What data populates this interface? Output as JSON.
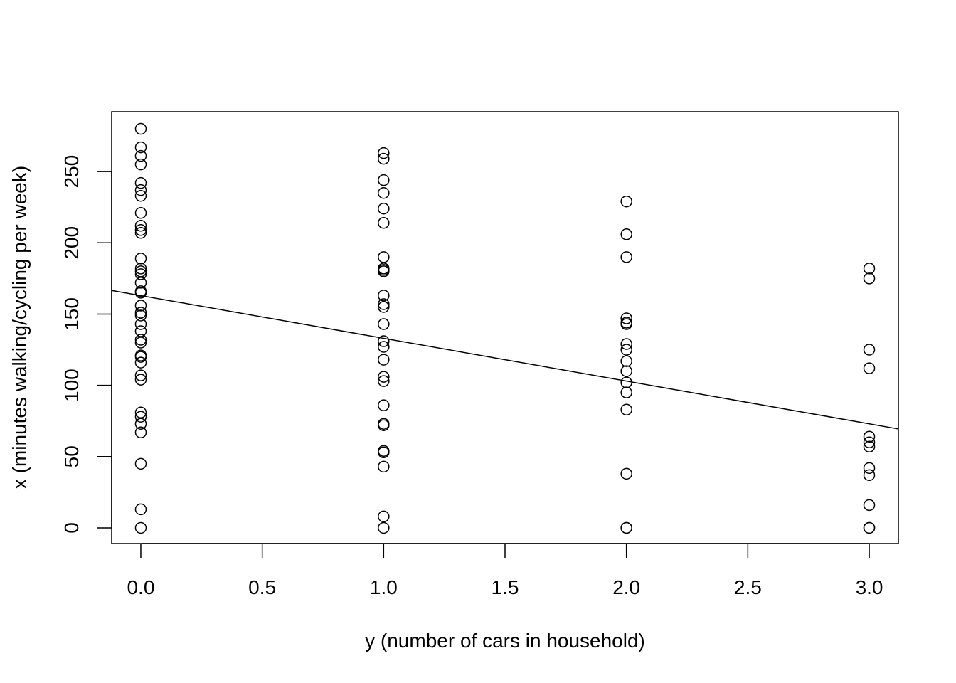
{
  "chart_data": {
    "type": "scatter",
    "title": "",
    "xlabel": "y (number of cars in household)",
    "ylabel": "x (minutes walking/cycling per week)",
    "xlim": [
      -0.12,
      3.12
    ],
    "ylim": [
      -11,
      292
    ],
    "x_ticks": [
      "0.0",
      "0.5",
      "1.0",
      "1.5",
      "2.0",
      "2.5",
      "3.0"
    ],
    "y_ticks": [
      "0",
      "50",
      "100",
      "150",
      "200",
      "250"
    ],
    "grid": false,
    "legend": "none",
    "series": [
      {
        "points": [
          [
            0,
            280
          ],
          [
            0,
            267
          ],
          [
            0,
            261
          ],
          [
            0,
            255
          ],
          [
            0,
            242
          ],
          [
            0,
            237
          ],
          [
            0,
            233
          ],
          [
            0,
            221
          ],
          [
            0,
            212
          ],
          [
            0,
            209
          ],
          [
            0,
            207
          ],
          [
            0,
            189
          ],
          [
            0,
            182
          ],
          [
            0,
            180
          ],
          [
            0,
            178
          ],
          [
            0,
            172
          ],
          [
            0,
            166
          ],
          [
            0,
            165
          ],
          [
            0,
            156
          ],
          [
            0,
            151
          ],
          [
            0,
            149
          ],
          [
            0,
            143
          ],
          [
            0,
            138
          ],
          [
            0,
            132
          ],
          [
            0,
            130
          ],
          [
            0,
            121
          ],
          [
            0,
            120
          ],
          [
            0,
            116
          ],
          [
            0,
            107
          ],
          [
            0,
            104
          ],
          [
            0,
            81
          ],
          [
            0,
            78
          ],
          [
            0,
            73
          ],
          [
            0,
            67
          ],
          [
            0,
            45
          ],
          [
            0,
            13
          ],
          [
            0,
            0
          ],
          [
            1,
            263
          ],
          [
            1,
            259
          ],
          [
            1,
            244
          ],
          [
            1,
            235
          ],
          [
            1,
            224
          ],
          [
            1,
            214
          ],
          [
            1,
            190
          ],
          [
            1,
            182
          ],
          [
            1,
            181
          ],
          [
            1,
            180
          ],
          [
            1,
            163
          ],
          [
            1,
            157
          ],
          [
            1,
            155
          ],
          [
            1,
            143
          ],
          [
            1,
            131
          ],
          [
            1,
            127
          ],
          [
            1,
            118
          ],
          [
            1,
            106
          ],
          [
            1,
            103
          ],
          [
            1,
            86
          ],
          [
            1,
            73
          ],
          [
            1,
            72
          ],
          [
            1,
            54
          ],
          [
            1,
            53
          ],
          [
            1,
            43
          ],
          [
            1,
            8
          ],
          [
            1,
            0
          ],
          [
            2,
            229
          ],
          [
            2,
            206
          ],
          [
            2,
            190
          ],
          [
            2,
            147
          ],
          [
            2,
            144
          ],
          [
            2,
            143
          ],
          [
            2,
            129
          ],
          [
            2,
            125
          ],
          [
            2,
            117
          ],
          [
            2,
            110
          ],
          [
            2,
            102
          ],
          [
            2,
            95
          ],
          [
            2,
            83
          ],
          [
            2,
            38
          ],
          [
            2,
            0
          ],
          [
            2,
            0
          ],
          [
            3,
            182
          ],
          [
            3,
            175
          ],
          [
            3,
            125
          ],
          [
            3,
            112
          ],
          [
            3,
            64
          ],
          [
            3,
            60
          ],
          [
            3,
            57
          ],
          [
            3,
            42
          ],
          [
            3,
            37
          ],
          [
            3,
            16
          ],
          [
            3,
            0
          ],
          [
            3,
            0
          ]
        ]
      }
    ],
    "fit_line": {
      "intercept": 163,
      "slope": -30
    }
  }
}
